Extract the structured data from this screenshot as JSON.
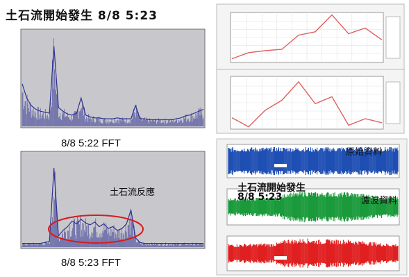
{
  "header": {
    "title": "土石流開始發生 8/8 5:23"
  },
  "captions": {
    "fft_top": "8/8 5:22 FFT",
    "fft_bottom": "8/8 5:23 FFT",
    "reaction": "土石流反應",
    "raw_data": "原始資料",
    "event": "土石流開始發生",
    "event_time": "8/8 5:23",
    "filtered_data": "濾波資料"
  },
  "colors": {
    "fft_line": "#2e3192",
    "fft_bg": "#c8c8cc",
    "trend_line": "#e06060",
    "raw_wave": "#1f4fb3",
    "filter_wave": "#1a9a3a",
    "red_wave": "#e02020",
    "highlight_ellipse": "#d81c1c"
  },
  "chart_data": [
    {
      "type": "line",
      "panel": "fft-top",
      "x": [
        0,
        1,
        2,
        3,
        4,
        5,
        6,
        7,
        8,
        9,
        10,
        11,
        12,
        13,
        14,
        15,
        16,
        17,
        18,
        19,
        20,
        21,
        22,
        23,
        24,
        25,
        26,
        27,
        28,
        29,
        30,
        31,
        32,
        33,
        34,
        35,
        36,
        37,
        38,
        39,
        40
      ],
      "values": [
        0.45,
        0.3,
        0.22,
        0.18,
        0.16,
        0.15,
        0.14,
        0.85,
        0.2,
        0.16,
        0.13,
        0.12,
        0.14,
        0.3,
        0.12,
        0.1,
        0.09,
        0.09,
        0.08,
        0.08,
        0.08,
        0.09,
        0.08,
        0.08,
        0.08,
        0.22,
        0.08,
        0.08,
        0.07,
        0.07,
        0.07,
        0.07,
        0.07,
        0.07,
        0.08,
        0.09,
        0.11,
        0.12,
        0.14,
        0.16,
        0.18
      ]
    },
    {
      "type": "line",
      "panel": "fft-bottom",
      "x": [
        0,
        1,
        2,
        3,
        4,
        5,
        6,
        7,
        8,
        9,
        10,
        11,
        12,
        13,
        14,
        15,
        16,
        17,
        18,
        19,
        20,
        21,
        22,
        23,
        24,
        25,
        26,
        27,
        28,
        29,
        30,
        31,
        32,
        33,
        34,
        35,
        36,
        37,
        38,
        39,
        40
      ],
      "values": [
        0.04,
        0.04,
        0.04,
        0.04,
        0.04,
        0.05,
        0.06,
        0.85,
        0.12,
        0.18,
        0.22,
        0.28,
        0.25,
        0.3,
        0.26,
        0.24,
        0.27,
        0.22,
        0.25,
        0.2,
        0.22,
        0.18,
        0.2,
        0.25,
        0.4,
        0.1,
        0.05,
        0.04,
        0.04,
        0.04,
        0.04,
        0.04,
        0.04,
        0.04,
        0.04,
        0.04,
        0.04,
        0.04,
        0.04,
        0.04,
        0.04
      ]
    },
    {
      "type": "line",
      "panel": "trend-top",
      "x": [
        0,
        1,
        2,
        3,
        4,
        5,
        6,
        7,
        8,
        9
      ],
      "values": [
        0.05,
        0.18,
        0.22,
        0.25,
        0.55,
        0.62,
        0.98,
        0.58,
        0.7,
        0.45
      ]
    },
    {
      "type": "line",
      "panel": "trend-bottom",
      "x": [
        0,
        1,
        2,
        3,
        4,
        5,
        6,
        7,
        8,
        9
      ],
      "values": [
        0.2,
        0.02,
        0.35,
        0.55,
        0.92,
        0.48,
        0.62,
        0.05,
        0.18,
        0.1
      ]
    },
    {
      "type": "area",
      "panel": "wave-raw",
      "x": [
        0,
        1,
        2,
        3,
        4,
        5,
        6,
        7,
        8,
        9,
        10,
        11,
        12,
        13,
        14,
        15,
        16,
        17,
        18,
        19,
        20
      ],
      "values": [
        0.92,
        0.9,
        0.93,
        0.91,
        0.92,
        0.9,
        0.93,
        0.92,
        0.91,
        0.93,
        0.9,
        0.92,
        0.91,
        0.93,
        0.92,
        0.9,
        0.92,
        0.91,
        0.93,
        0.92,
        0.91
      ]
    },
    {
      "type": "area",
      "panel": "wave-filtered",
      "x": [
        0,
        1,
        2,
        3,
        4,
        5,
        6,
        7,
        8,
        9,
        10,
        11,
        12,
        13,
        14,
        15,
        16,
        17,
        18,
        19,
        20
      ],
      "values": [
        0.55,
        0.52,
        0.58,
        0.55,
        0.6,
        0.56,
        0.6,
        0.9,
        0.85,
        0.95,
        0.9,
        0.88,
        0.92,
        0.86,
        0.9,
        0.85,
        0.8,
        0.72,
        0.68,
        0.62,
        0.6
      ]
    },
    {
      "type": "area",
      "panel": "wave-red",
      "x": [
        0,
        1,
        2,
        3,
        4,
        5,
        6,
        7,
        8,
        9,
        10,
        11,
        12,
        13,
        14,
        15,
        16,
        17,
        18,
        19,
        20
      ],
      "values": [
        0.6,
        0.58,
        0.62,
        0.6,
        0.65,
        0.62,
        0.7,
        0.92,
        0.88,
        0.95,
        0.9,
        0.85,
        0.9,
        0.86,
        0.88,
        0.82,
        0.78,
        0.72,
        0.66,
        0.62,
        0.6
      ]
    }
  ]
}
